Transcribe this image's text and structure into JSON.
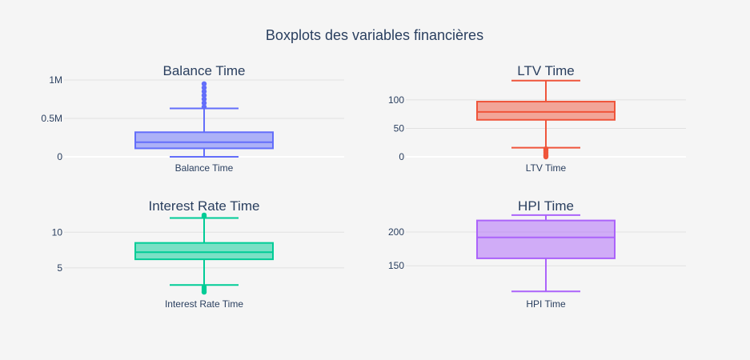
{
  "title": "Boxplots des variables financières",
  "chart_data": [
    {
      "type": "box",
      "title": "Balance Time",
      "category": "Balance Time",
      "color": "#636efa",
      "ylim": [
        0,
        1000000
      ],
      "yticks": [
        {
          "v": 0,
          "label": "0"
        },
        {
          "v": 500000,
          "label": "0.5M"
        },
        {
          "v": 1000000,
          "label": "1M"
        }
      ],
      "box": {
        "lowerfence": 0,
        "q1": 110000,
        "median": 190000,
        "q3": 320000,
        "upperfence": 630000
      },
      "outliers": [
        650000,
        700000,
        750000,
        800000,
        850000,
        900000,
        950000
      ]
    },
    {
      "type": "box",
      "title": "LTV Time",
      "category": "LTV Time",
      "color": "#ef553b",
      "ylim": [
        0,
        135
      ],
      "yticks": [
        {
          "v": 0,
          "label": "0"
        },
        {
          "v": 50,
          "label": "50"
        },
        {
          "v": 100,
          "label": "100"
        }
      ],
      "box": {
        "lowerfence": 16,
        "q1": 65,
        "median": 79,
        "q3": 97,
        "upperfence": 134
      },
      "outliers": [
        14,
        11,
        8,
        5,
        2,
        0
      ]
    },
    {
      "type": "box",
      "title": "Interest Rate Time",
      "category": "Interest Rate Time",
      "color": "#00cc96",
      "ylim": [
        1.5,
        12.5
      ],
      "yticks": [
        {
          "v": 5,
          "label": "5"
        },
        {
          "v": 10,
          "label": "10"
        }
      ],
      "box": {
        "lowerfence": 2.6,
        "q1": 6.2,
        "median": 7.2,
        "q3": 8.5,
        "upperfence": 12.0
      },
      "outliers": [
        12.2,
        12.4,
        2.3,
        2.0,
        1.8,
        1.6
      ]
    },
    {
      "type": "box",
      "title": "HPI Time",
      "category": "HPI Time",
      "color": "#ab63fa",
      "ylim": [
        110,
        226
      ],
      "yticks": [
        {
          "v": 150,
          "label": "150"
        },
        {
          "v": 200,
          "label": "200"
        }
      ],
      "box": {
        "lowerfence": 112,
        "q1": 161,
        "median": 192,
        "q3": 217,
        "upperfence": 225
      },
      "outliers": []
    }
  ]
}
